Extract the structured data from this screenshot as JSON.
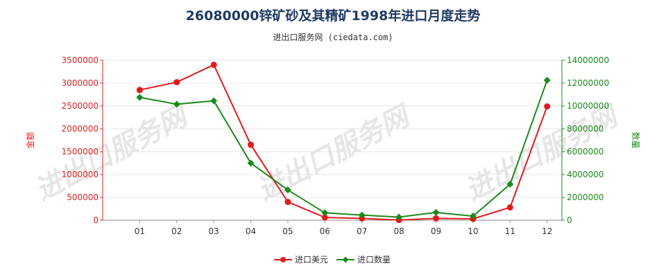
{
  "header": {
    "title": "26080000锌矿砂及其精矿1998年进口月度走势",
    "subtitle": "进出口服务网 (ciedata.com)"
  },
  "watermark": "进出口服务网",
  "colors": {
    "value_series": "#e31a1c",
    "quantity_series": "#1a8a1a",
    "left_axis": "#e02020",
    "right_axis": "#1a8a1a"
  },
  "chart_data": {
    "type": "line",
    "categories": [
      "01",
      "02",
      "03",
      "04",
      "05",
      "06",
      "07",
      "08",
      "09",
      "10",
      "11",
      "12"
    ],
    "left_axis": {
      "label": "金额",
      "ylim": [
        0,
        3500000
      ],
      "ticks": [
        "0",
        "500000",
        "1000000",
        "1500000",
        "2000000",
        "2500000",
        "3000000",
        "3500000"
      ]
    },
    "right_axis": {
      "label": "数量",
      "ylim": [
        0,
        14000000
      ],
      "ticks": [
        "0",
        "2000000",
        "4000000",
        "6000000",
        "8000000",
        "10000000",
        "12000000",
        "14000000"
      ]
    },
    "series": [
      {
        "name": "进口美元",
        "axis": "left",
        "values": [
          2850000,
          3020000,
          3400000,
          1650000,
          400000,
          60000,
          40000,
          5000,
          40000,
          30000,
          280000,
          2490000
        ]
      },
      {
        "name": "进口数量",
        "axis": "right",
        "values": [
          10750000,
          10150000,
          10450000,
          5000000,
          2650000,
          650000,
          450000,
          270000,
          680000,
          360000,
          3150000,
          12250000
        ]
      }
    ],
    "legend_position": "bottom-center",
    "grid": true
  }
}
